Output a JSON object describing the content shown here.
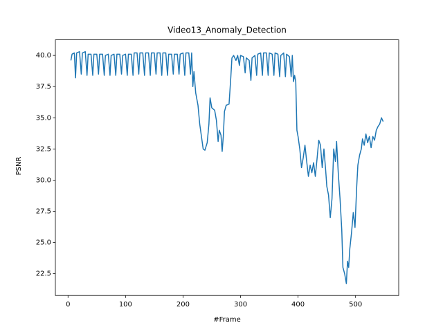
{
  "chart_data": {
    "type": "line",
    "title": "Video13_Anomaly_Detection",
    "x_label": "#Frame",
    "y_label": "PSNR",
    "xlim": [
      -22,
      575
    ],
    "xticks": [
      0,
      100,
      200,
      300,
      400,
      500
    ],
    "ylim": [
      20.75,
      41.25
    ],
    "yticks": [
      {
        "value": 22.5,
        "label": "22.5"
      },
      {
        "value": 25,
        "label": "25.0"
      },
      {
        "value": 27.5,
        "label": "27.5"
      },
      {
        "value": 30,
        "label": "30.0"
      },
      {
        "value": 32.5,
        "label": "32.5"
      },
      {
        "value": 35,
        "label": "35.0"
      },
      {
        "value": 37.5,
        "label": "37.5"
      },
      {
        "value": 40,
        "label": "40.0"
      }
    ],
    "grid": false,
    "series": [
      {
        "color": "#1f77b4",
        "x": [
          5,
          7,
          11,
          13,
          15,
          20,
          23,
          25,
          30,
          33,
          35,
          40,
          43,
          45,
          50,
          53,
          55,
          60,
          63,
          65,
          70,
          73,
          75,
          80,
          83,
          85,
          90,
          93,
          95,
          100,
          103,
          105,
          110,
          113,
          115,
          120,
          123,
          125,
          130,
          133,
          135,
          140,
          143,
          145,
          150,
          153,
          155,
          160,
          163,
          165,
          170,
          173,
          175,
          180,
          183,
          185,
          190,
          193,
          195,
          200,
          203,
          205,
          210,
          213,
          215,
          217,
          219,
          222,
          226,
          229,
          232,
          235,
          238,
          242,
          245,
          247,
          250,
          255,
          258,
          261,
          263,
          266,
          268,
          270,
          272,
          275,
          280,
          283,
          285,
          288,
          292,
          295,
          298,
          300,
          305,
          308,
          310,
          315,
          318,
          320,
          325,
          328,
          330,
          335,
          338,
          340,
          345,
          348,
          350,
          355,
          358,
          360,
          365,
          368,
          370,
          375,
          378,
          380,
          385,
          388,
          390,
          392,
          394,
          396,
          398,
          400,
          403,
          406,
          409,
          412,
          415,
          418,
          421,
          424,
          427,
          430,
          433,
          436,
          439,
          442,
          445,
          448,
          450,
          453,
          456,
          459,
          462,
          465,
          467,
          470,
          473,
          476,
          478,
          481,
          484,
          486,
          488,
          490,
          493,
          496,
          499,
          502,
          504,
          507,
          510,
          512,
          515,
          518,
          521,
          524,
          527,
          530,
          533,
          536,
          539,
          542,
          545,
          548
        ],
        "values": [
          39.6,
          40.1,
          40.2,
          38.2,
          40.2,
          40.3,
          38.5,
          40.2,
          40.3,
          38.4,
          40.1,
          40.1,
          38.4,
          40.1,
          40.1,
          38.5,
          40.1,
          40.1,
          38.4,
          40.0,
          40.1,
          38.4,
          40.0,
          40.1,
          38.4,
          40.1,
          40.1,
          38.5,
          40.0,
          40.1,
          38.4,
          40.1,
          40.1,
          38.4,
          40.2,
          40.2,
          38.5,
          40.2,
          40.2,
          38.4,
          40.2,
          40.2,
          38.4,
          40.2,
          40.2,
          38.5,
          40.2,
          40.2,
          38.4,
          40.2,
          40.2,
          38.4,
          40.1,
          40.1,
          38.5,
          40.1,
          40.1,
          38.5,
          40.1,
          40.2,
          38.4,
          40.2,
          40.2,
          38.5,
          40.2,
          37.5,
          38.7,
          37.0,
          36.0,
          34.5,
          33.5,
          32.5,
          32.4,
          33.0,
          34.5,
          36.6,
          35.8,
          35.6,
          34.8,
          33.1,
          34.0,
          33.6,
          32.3,
          33.5,
          35.5,
          36.0,
          36.1,
          38.2,
          39.8,
          40.0,
          39.6,
          40.0,
          39.2,
          40.0,
          39.9,
          38.6,
          39.8,
          39.6,
          38.0,
          39.8,
          40.0,
          38.4,
          40.1,
          40.2,
          38.4,
          40.2,
          40.2,
          38.4,
          40.2,
          40.1,
          38.4,
          40.2,
          40.1,
          38.3,
          40.0,
          40.2,
          38.3,
          40.1,
          39.9,
          38.3,
          40.0,
          37.9,
          38.4,
          37.9,
          34.0,
          33.5,
          32.5,
          31.0,
          31.8,
          32.8,
          31.5,
          30.3,
          31.2,
          30.6,
          31.4,
          30.3,
          31.7,
          33.2,
          32.8,
          31.0,
          32.5,
          30.8,
          29.5,
          28.8,
          27.0,
          28.5,
          32.5,
          31.5,
          33.1,
          30.5,
          28.5,
          26.0,
          23.0,
          22.5,
          21.7,
          23.5,
          23.0,
          24.5,
          25.8,
          27.4,
          26.2,
          29.5,
          31.2,
          32.0,
          32.5,
          33.3,
          32.8,
          33.7,
          33.0,
          33.5,
          32.6,
          33.5,
          33.2,
          34.0,
          34.3,
          34.5,
          35.0,
          34.7
        ]
      }
    ]
  }
}
